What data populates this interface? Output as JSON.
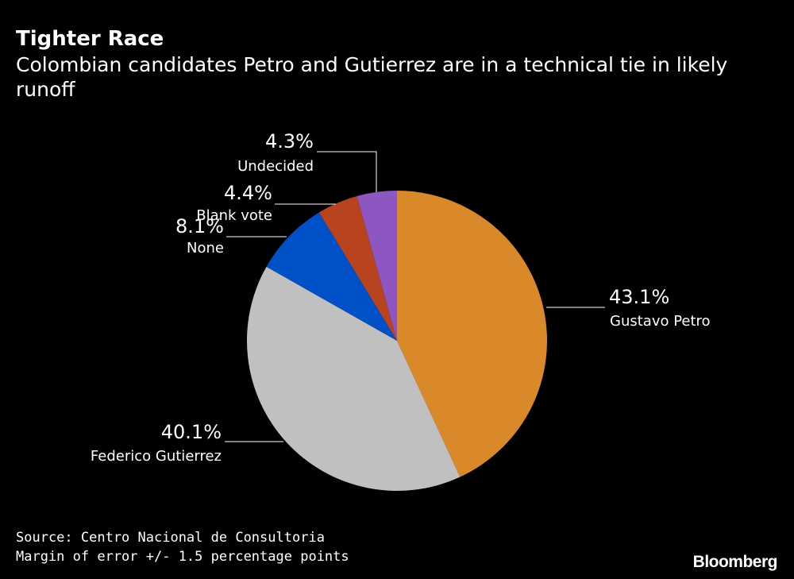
{
  "title": "Tighter Race",
  "subtitle": "Colombian candidates Petro and Gutierrez are in a technical tie in likely runoff",
  "footer": {
    "source": "Source: Centro Nacional de Consultoria",
    "note": "Margin of error +/- 1.5 percentage points"
  },
  "logo": "Bloomberg",
  "chart_data": {
    "type": "pie",
    "slices": [
      {
        "label": "Gustavo Petro",
        "value": 43.1,
        "value_label": "43.1%",
        "color": "#d9882a"
      },
      {
        "label": "Federico Gutierrez",
        "value": 40.1,
        "value_label": "40.1%",
        "color": "#c0c0c0"
      },
      {
        "label": "None",
        "value": 8.1,
        "value_label": "8.1%",
        "color": "#0050c8"
      },
      {
        "label": "Blank vote",
        "value": 4.4,
        "value_label": "4.4%",
        "color": "#b8431f"
      },
      {
        "label": "Undecided",
        "value": 4.3,
        "value_label": "4.3%",
        "color": "#8e56c1"
      }
    ]
  }
}
